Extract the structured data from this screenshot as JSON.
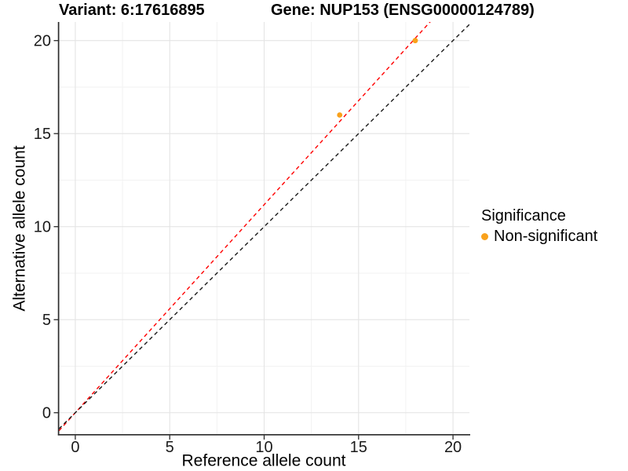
{
  "chart_data": {
    "type": "scatter",
    "title_left": "Variant: 6:17616895",
    "title_right": "Gene: NUP153 (ENSG00000124789)",
    "xlabel": "Reference allele count",
    "ylabel": "Alternative allele count",
    "xlim": [
      -0.87,
      20.87
    ],
    "ylim": [
      -1.15,
      21.0
    ],
    "x_ticks": [
      0,
      5,
      10,
      15,
      20
    ],
    "y_ticks": [
      0,
      5,
      10,
      15,
      20
    ],
    "x_minor_ticks": [
      2.5,
      7.5,
      12.5,
      17.5
    ],
    "y_minor_ticks": [
      2.5,
      7.5,
      12.5,
      17.5
    ],
    "grid": true,
    "legend_position": "right",
    "legend_title": "Significance",
    "series": [
      {
        "name": "Non-significant",
        "color": "#F9A11B",
        "points": [
          {
            "x": 14,
            "y": 16
          },
          {
            "x": 18,
            "y": 20
          }
        ]
      }
    ],
    "reference_lines": [
      {
        "name": "fitted-ratio-line",
        "slope": 1.118,
        "intercept": 0,
        "color": "#FF0000",
        "dash": "5 4"
      },
      {
        "name": "identity-line",
        "slope": 1.0,
        "intercept": 0,
        "color": "#1A1A1A",
        "dash": "5 4"
      }
    ]
  },
  "style": {
    "axis_color": "#2B2B2B",
    "tick_label_color": "#1A1A1A",
    "grid_major_color": "#E4E4E4",
    "grid_minor_color": "#F2F2F2",
    "point_radius": 3.4,
    "tick_label_size": 20
  }
}
